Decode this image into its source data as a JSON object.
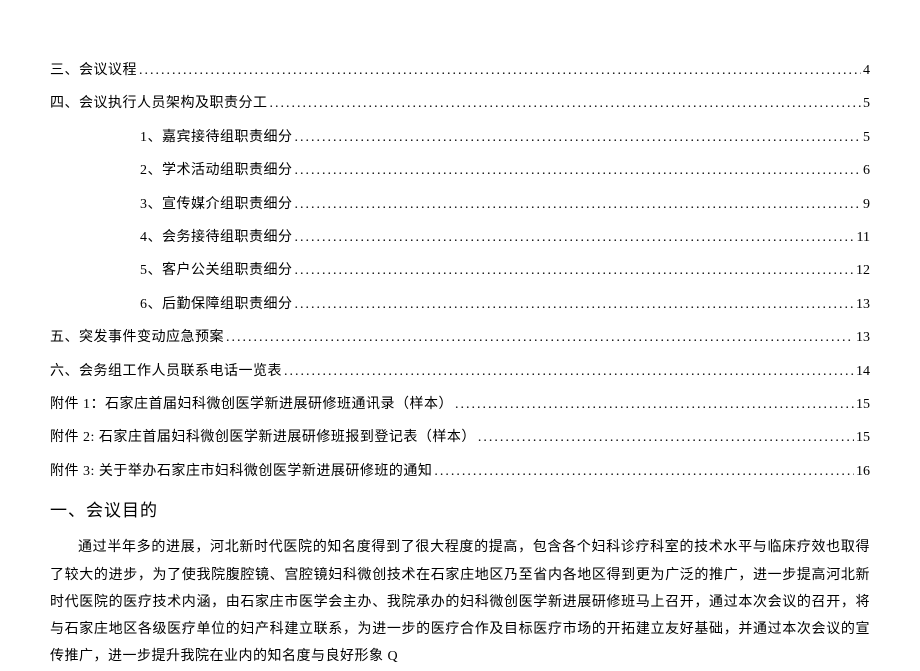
{
  "toc": [
    {
      "label": "三、会议议程",
      "page": "4",
      "indent": 0
    },
    {
      "label": "四、会议执行人员架构及职责分工",
      "page": "5",
      "indent": 0
    },
    {
      "label": "1、嘉宾接待组职责细分",
      "page": "5",
      "indent": 1
    },
    {
      "label": "2、学术活动组职责细分",
      "page": "6",
      "indent": 1
    },
    {
      "label": "3、宣传媒介组职责细分",
      "page": "9",
      "indent": 1
    },
    {
      "label": "4、会务接待组职责细分",
      "page": "11",
      "indent": 1
    },
    {
      "label": "5、客户公关组职责细分",
      "page": "12",
      "indent": 1
    },
    {
      "label": "6、后勤保障组职责细分",
      "page": "13",
      "indent": 1
    },
    {
      "label": "五、突发事件变动应急预案",
      "page": "13",
      "indent": 0
    },
    {
      "label": "六、会务组工作人员联系电话一览表",
      "page": "14",
      "indent": 0
    },
    {
      "label": "附件 1：石家庄首届妇科微创医学新进展研修班通讯录（样本）",
      "page": "15",
      "indent": 0
    },
    {
      "label": "附件 2: 石家庄首届妇科微创医学新进展研修班报到登记表（样本）",
      "page": "15",
      "indent": 0
    },
    {
      "label": "附件 3: 关于举办石家庄市妇科微创医学新进展研修班的通知",
      "page": "16",
      "indent": 0
    }
  ],
  "section_title": "一、会议目的",
  "body_paragraph": "通过半年多的进展，河北新时代医院的知名度得到了很大程度的提高，包含各个妇科诊疗科室的技术水平与临床疗效也取得了较大的进步，为了使我院腹腔镜、宫腔镜妇科微创技术在石家庄地区乃至省内各地区得到更为广泛的推广，进一步提高河北新时代医院的医疗技术内涵，由石家庄市医学会主办、我院承办的妇科微创医学新进展研修班马上召开，通过本次会议的召开，将与石家庄地区各级医疗单位的妇产科建立联系，为进一步的医疗合作及目标医疗市场的开拓建立友好基础，并通过本次会议的宣传推广，进一步提升我院在业内的知名度与良好形象 Q"
}
